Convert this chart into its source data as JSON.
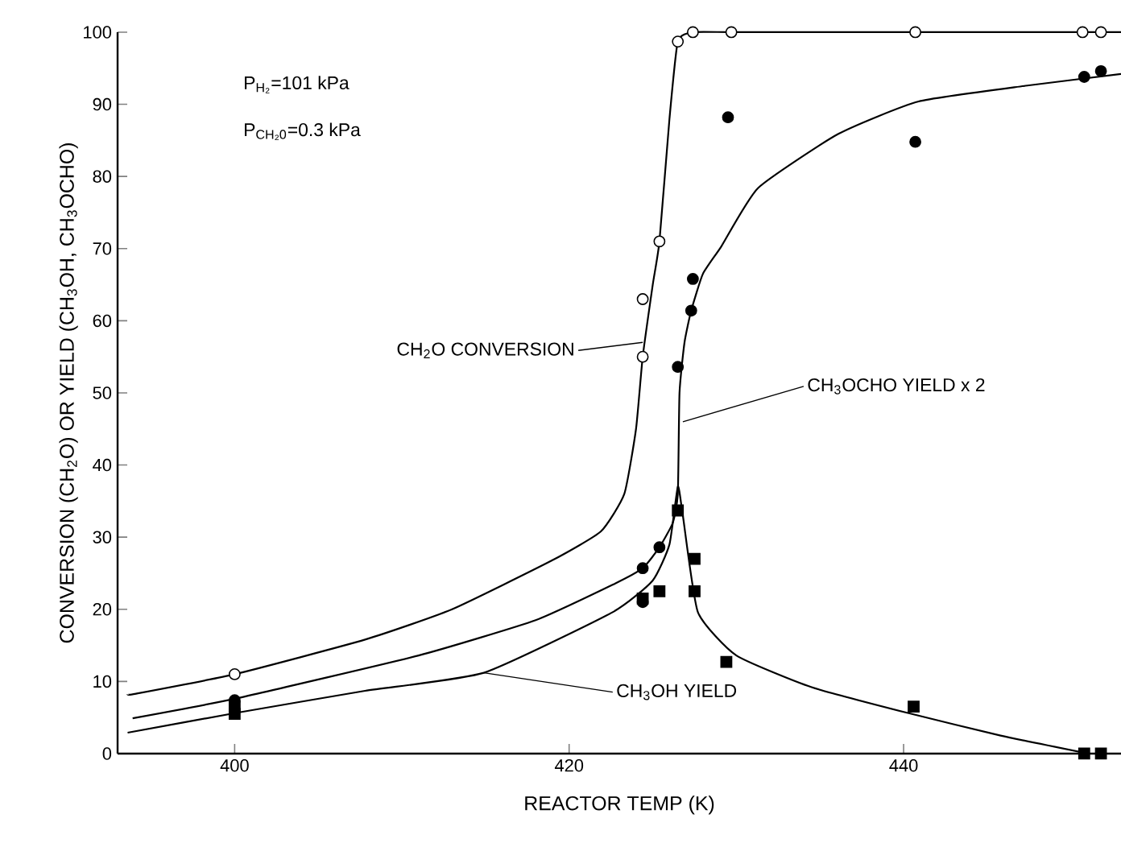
{
  "chart_data": {
    "type": "scatter",
    "xlabel": "REACTOR TEMP (K)",
    "ylabel": "CONVERSION (CH$_{2}$O) OR YIELD (CH$_{3}$OH, CH$_{3}$OCHO)",
    "xlim": [
      393,
      453
    ],
    "ylim": [
      0,
      100
    ],
    "xticks": [
      400,
      420,
      440
    ],
    "yticks": [
      0,
      10,
      20,
      30,
      40,
      50,
      60,
      70,
      80,
      90,
      100
    ],
    "grid": false,
    "series": [
      {
        "type": "line",
        "color": "#000000",
        "marker": "none",
        "line_style": "solid",
        "x": [
          393.6,
          394.1,
          400,
          407.8,
          413,
          419,
          421.9,
          423.3,
          424,
          424.4,
          425,
          425.4,
          426,
          426.5,
          427.4,
          430,
          440,
          450,
          453
        ],
        "values": [
          8.2,
          8.3,
          11,
          15.8,
          20,
          26.8,
          30.8,
          36,
          45,
          55,
          65,
          71,
          88,
          98.7,
          100,
          100,
          100,
          100,
          100
        ]
      },
      {
        "type": "line",
        "color": "#000000",
        "marker": "none",
        "line_style": "solid",
        "x": [
          393.9,
          400,
          411,
          418,
          422.6,
          424.4,
          425.4,
          426.2,
          426.5,
          426.6,
          426.9,
          427.3,
          428,
          429.1,
          431.3,
          436.1,
          440.9,
          447.4,
          453
        ],
        "values": [
          4.9,
          7.6,
          13.6,
          18.5,
          23.4,
          25.7,
          28.6,
          32,
          36,
          50,
          57,
          61.4,
          66.5,
          70.3,
          78.4,
          85.9,
          90.4,
          92.6,
          94.2
        ]
      },
      {
        "type": "line",
        "color": "#000000",
        "marker": "none",
        "line_style": "solid",
        "x": [
          393.6,
          400,
          407.8,
          414.9,
          422.6,
          425,
          426,
          426.5,
          426.8,
          427.7,
          430,
          434.5,
          440.3,
          445.8,
          450.6
        ],
        "values": [
          2.9,
          5.6,
          8.7,
          11.2,
          19.6,
          24,
          29,
          37,
          33,
          19.6,
          13.6,
          9.2,
          5.6,
          2.5,
          0.2
        ]
      },
      {
        "color": "#ffffff",
        "marker": "circle",
        "x": [
          400,
          424.4,
          424.4,
          425.4,
          426.5,
          427.4,
          429.7,
          440.7,
          450.7,
          451.8
        ],
        "values": [
          11,
          55,
          63,
          71,
          98.7,
          100,
          100,
          100,
          100,
          100
        ]
      },
      {
        "color": "#000000",
        "marker": "circle",
        "x": [
          400,
          424.4,
          424.4,
          425.4,
          426.5,
          427.3,
          427.4,
          429.5,
          440.7,
          450.8,
          451.8
        ],
        "values": [
          7.4,
          21,
          25.7,
          28.6,
          53.6,
          61.4,
          65.8,
          88.2,
          84.8,
          93.8,
          94.6
        ]
      },
      {
        "color": "#000000",
        "marker": "square",
        "x": [
          400,
          400,
          424.4,
          425.4,
          426.5,
          427.5,
          427.5,
          429.4,
          440.6,
          450.8,
          451.8
        ],
        "values": [
          5.5,
          6.5,
          21.5,
          22.5,
          33.7,
          27,
          22.5,
          12.7,
          6.5,
          0,
          0
        ]
      }
    ],
    "annotations": [
      "P$_{H₂}$=101 kPa",
      "P$_{CH₂0}$=0.3 kPa",
      {
        "text": "CH$_{2}$O CONVERSION",
        "x": 424.4,
        "y": 57
      },
      {
        "text": "CH$_{3}$OCHO YIELD x 2",
        "x": 426.8,
        "y": 46
      },
      {
        "text": "CH$_{3}$OH YIELD",
        "x": 414.9,
        "y": 11.2
      }
    ]
  }
}
